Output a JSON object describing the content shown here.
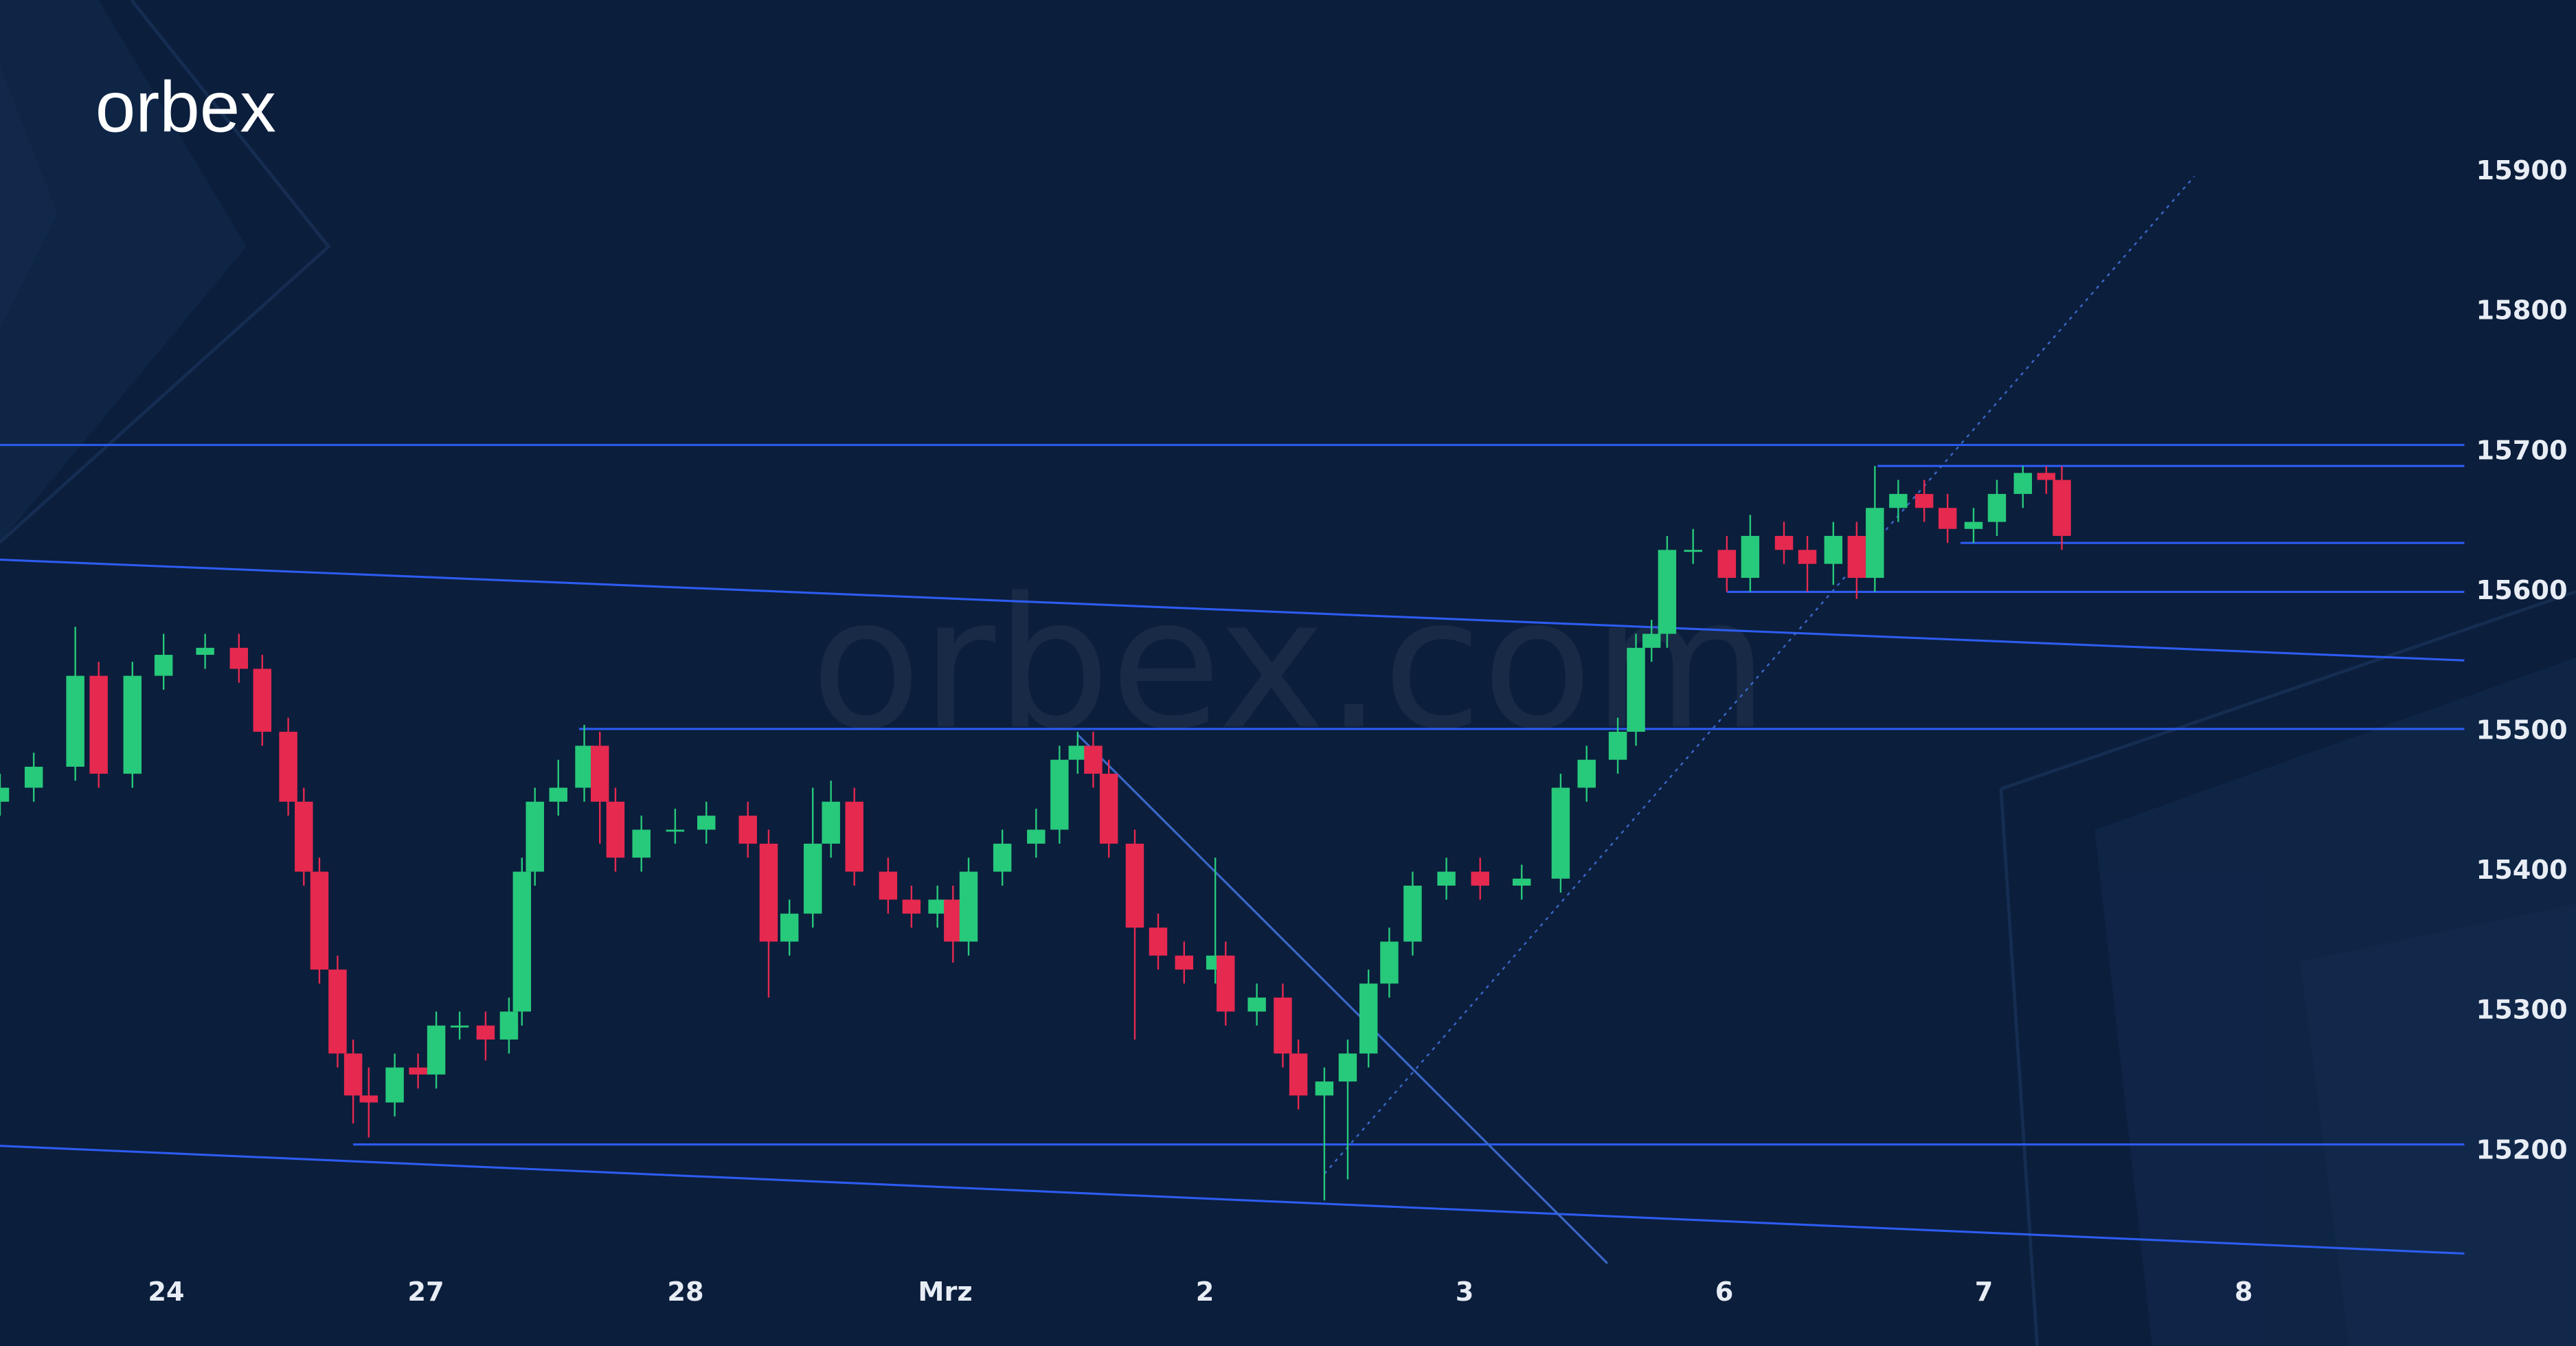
{
  "logo": "orbex",
  "watermark": "orbex.com",
  "chart_data": {
    "type": "candlestick",
    "x": [
      -0.64,
      -0.51,
      -0.35,
      -0.26,
      -0.13,
      -0.01,
      0.15,
      0.28,
      0.37,
      0.47,
      0.53,
      0.59,
      0.66,
      0.72,
      0.78,
      0.88,
      0.97,
      1.04,
      1.13,
      1.23,
      1.32,
      1.37,
      1.42,
      1.51,
      1.61,
      1.67,
      1.73,
      1.83,
      1.96,
      2.08,
      2.24,
      2.32,
      2.4,
      2.49,
      2.56,
      2.65,
      2.78,
      2.87,
      2.97,
      3.03,
      3.09,
      3.22,
      3.35,
      3.44,
      3.51,
      3.57,
      3.63,
      3.73,
      3.82,
      3.92,
      4.04,
      4.08,
      4.2,
      4.3,
      4.36,
      4.46,
      4.55,
      4.63,
      4.71,
      4.8,
      4.93,
      5.06,
      5.22,
      5.37,
      5.47,
      5.59,
      5.66,
      5.72,
      5.78,
      5.88,
      6.01,
      6.1,
      6.23,
      6.32,
      6.42,
      6.51,
      6.58,
      6.67,
      6.77,
      6.86,
      6.96,
      7.05,
      7.15,
      7.24,
      7.3
    ],
    "open": [
      15450,
      15460,
      15475,
      15540,
      15470,
      15540,
      15555,
      15560,
      15545,
      15500,
      15450,
      15400,
      15330,
      15270,
      15240,
      15235,
      15260,
      15255,
      15290,
      15290,
      15280,
      15300,
      15400,
      15450,
      15460,
      15490,
      15450,
      15410,
      15430,
      15430,
      15440,
      15420,
      15350,
      15370,
      15420,
      15450,
      15400,
      15380,
      15370,
      15380,
      15350,
      15400,
      15420,
      15430,
      15480,
      15490,
      15470,
      15420,
      15360,
      15340,
      15330,
      15340,
      15300,
      15310,
      15270,
      15240,
      15250,
      15270,
      15320,
      15350,
      15390,
      15400,
      15390,
      15395,
      15460,
      15480,
      15500,
      15560,
      15570,
      15630,
      15630,
      15610,
      15640,
      15630,
      15620,
      15640,
      15610,
      15660,
      15670,
      15660,
      15645,
      15650,
      15670,
      15685,
      15680
    ],
    "high": [
      15470,
      15485,
      15575,
      15550,
      15550,
      15570,
      15570,
      15570,
      15555,
      15510,
      15460,
      15410,
      15340,
      15280,
      15260,
      15270,
      15270,
      15300,
      15300,
      15300,
      15310,
      15410,
      15460,
      15480,
      15505,
      15500,
      15460,
      15440,
      15445,
      15450,
      15450,
      15430,
      15380,
      15460,
      15465,
      15460,
      15410,
      15390,
      15390,
      15390,
      15410,
      15430,
      15445,
      15490,
      15500,
      15500,
      15480,
      15430,
      15370,
      15350,
      15410,
      15350,
      15320,
      15320,
      15280,
      15260,
      15280,
      15330,
      15360,
      15400,
      15410,
      15410,
      15405,
      15470,
      15490,
      15510,
      15570,
      15580,
      15640,
      15645,
      15640,
      15655,
      15650,
      15640,
      15650,
      15650,
      15690,
      15680,
      15680,
      15670,
      15660,
      15680,
      15690,
      15690,
      15690
    ],
    "low": [
      15440,
      15450,
      15465,
      15460,
      15460,
      15530,
      15545,
      15535,
      15490,
      15440,
      15390,
      15320,
      15260,
      15220,
      15210,
      15225,
      15245,
      15245,
      15280,
      15265,
      15270,
      15290,
      15390,
      15440,
      15450,
      15420,
      15400,
      15400,
      15420,
      15420,
      15410,
      15310,
      15340,
      15360,
      15410,
      15390,
      15370,
      15360,
      15360,
      15335,
      15340,
      15390,
      15410,
      15420,
      15470,
      15460,
      15410,
      15280,
      15330,
      15320,
      15320,
      15290,
      15290,
      15260,
      15230,
      15165,
      15180,
      15260,
      15310,
      15340,
      15380,
      15380,
      15380,
      15385,
      15450,
      15470,
      15490,
      15550,
      15560,
      15620,
      15600,
      15600,
      15620,
      15600,
      15605,
      15595,
      15600,
      15650,
      15650,
      15635,
      15635,
      15640,
      15660,
      15670,
      15630
    ],
    "close": [
      15460,
      15475,
      15540,
      15470,
      15540,
      15555,
      15560,
      15545,
      15500,
      15450,
      15400,
      15330,
      15270,
      15240,
      15235,
      15260,
      15255,
      15290,
      15290,
      15280,
      15300,
      15400,
      15450,
      15460,
      15490,
      15450,
      15410,
      15430,
      15430,
      15440,
      15420,
      15350,
      15370,
      15420,
      15450,
      15400,
      15380,
      15370,
      15380,
      15350,
      15400,
      15420,
      15430,
      15480,
      15490,
      15470,
      15420,
      15360,
      15340,
      15330,
      15340,
      15300,
      15310,
      15270,
      15240,
      15250,
      15270,
      15320,
      15350,
      15390,
      15400,
      15390,
      15395,
      15460,
      15480,
      15500,
      15560,
      15570,
      15630,
      15630,
      15610,
      15640,
      15630,
      15620,
      15640,
      15610,
      15660,
      15670,
      15660,
      15645,
      15650,
      15670,
      15685,
      15680,
      15640
    ],
    "up_color": "#27c97a",
    "down_color": "#e6294f",
    "lines": [
      {
        "x": [
          -0.64,
          8.85
        ],
        "y": [
          15705,
          15705
        ],
        "color": "#2d5cf0",
        "style": "solid"
      },
      {
        "x": [
          6.59,
          8.85
        ],
        "y": [
          15690,
          15690
        ],
        "color": "#2d5cf0",
        "style": "solid"
      },
      {
        "x": [
          6.91,
          8.85
        ],
        "y": [
          15635,
          15635
        ],
        "color": "#2d5cf0",
        "style": "solid"
      },
      {
        "x": [
          6.01,
          8.85
        ],
        "y": [
          15600,
          15600
        ],
        "color": "#2d5cf0",
        "style": "solid"
      },
      {
        "x": [
          1.59,
          8.85
        ],
        "y": [
          15502,
          15502
        ],
        "color": "#2d5cf0",
        "style": "solid"
      },
      {
        "x": [
          0.72,
          8.85
        ],
        "y": [
          15205,
          15205
        ],
        "color": "#2d5cf0",
        "style": "solid"
      },
      {
        "x": [
          -0.64,
          8.85
        ],
        "y": [
          15623,
          15551
        ],
        "color": "#2d5cf0",
        "style": "solid"
      },
      {
        "x": [
          -0.64,
          8.85
        ],
        "y": [
          15204,
          15127
        ],
        "color": "#2d5cf0",
        "style": "solid"
      },
      {
        "x": [
          3.51,
          5.55
        ],
        "y": [
          15498,
          15120
        ],
        "color": "#3a68c8",
        "style": "solid"
      },
      {
        "x": [
          4.46,
          7.81
        ],
        "y": [
          15184,
          15897
        ],
        "color": "#3a68c8",
        "style": "dotted"
      }
    ],
    "xlim": [
      -0.64,
      9.28
    ],
    "ylim": [
      15061,
      16023
    ],
    "xticks": [
      {
        "value": 0,
        "label": "24"
      },
      {
        "value": 1,
        "label": "27"
      },
      {
        "value": 2,
        "label": "28"
      },
      {
        "value": 3,
        "label": "Mrz"
      },
      {
        "value": 4,
        "label": "2"
      },
      {
        "value": 5,
        "label": "3"
      },
      {
        "value": 6,
        "label": "6"
      },
      {
        "value": 7,
        "label": "7"
      },
      {
        "value": 8,
        "label": "8"
      }
    ],
    "yticks": [
      15200,
      15300,
      15400,
      15500,
      15600,
      15700,
      15800,
      15900
    ]
  }
}
